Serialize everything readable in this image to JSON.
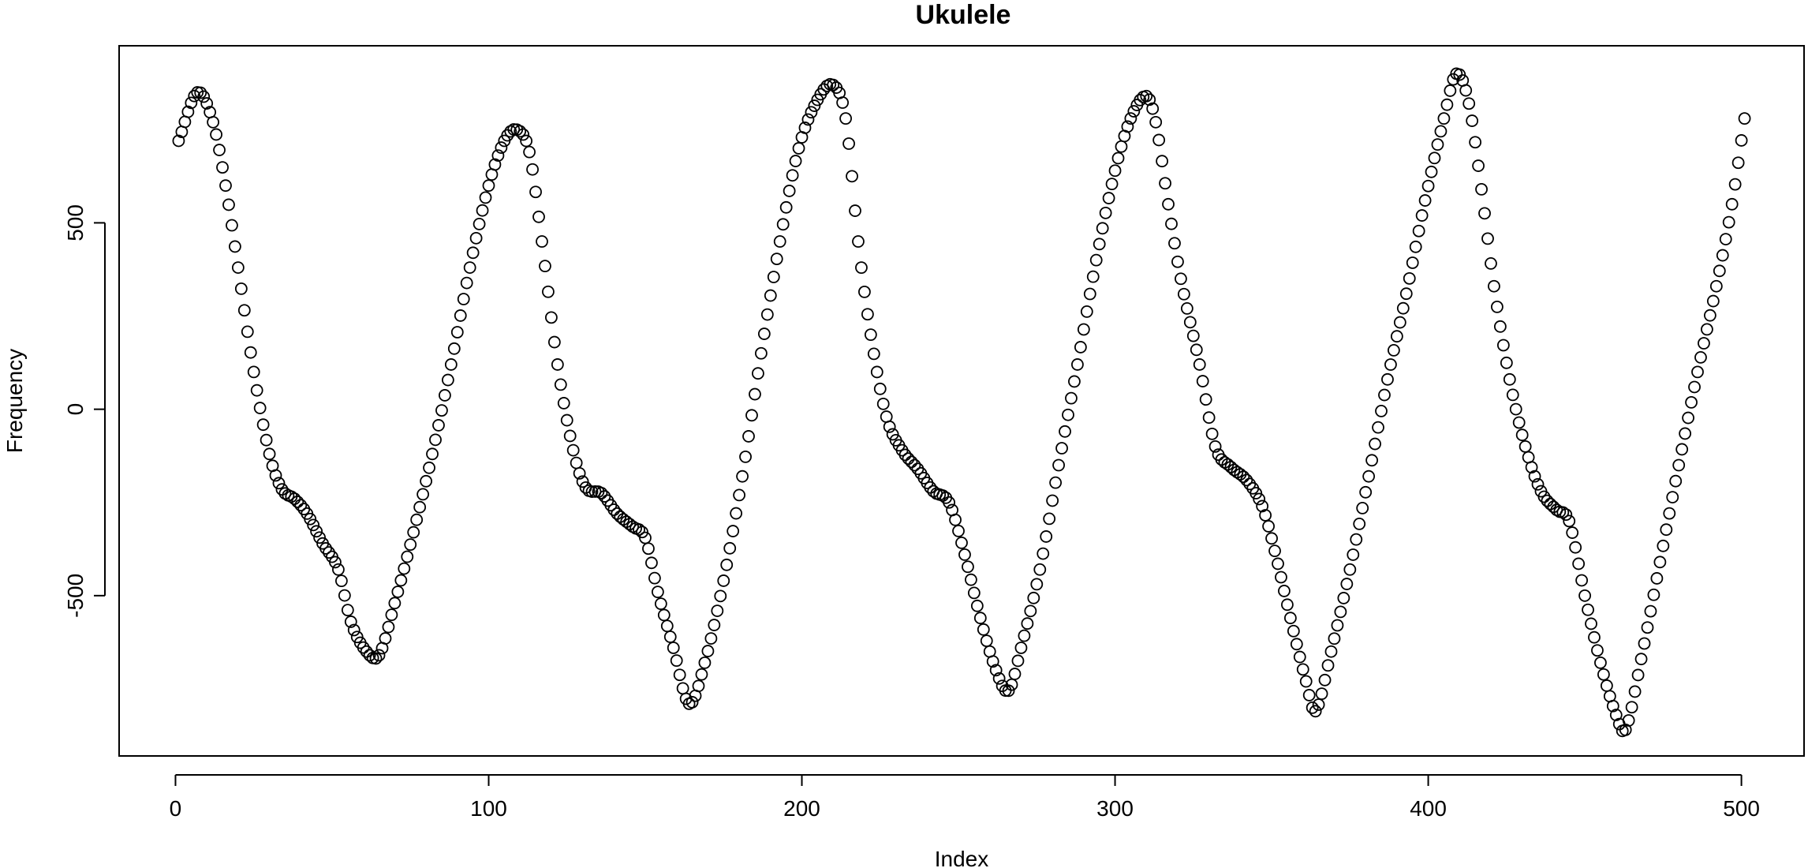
{
  "chart_data": {
    "type": "scatter",
    "title": "Ukulele",
    "xlabel": "Index",
    "ylabel": "Frequency",
    "xlim": [
      -18,
      520
    ],
    "ylim": [
      -930,
      975
    ],
    "x_ticks": [
      0,
      100,
      200,
      300,
      400,
      500
    ],
    "x_tick_labels": [
      "0",
      "100",
      "200",
      "300",
      "400",
      "500"
    ],
    "y_ticks": [
      -500,
      0,
      500
    ],
    "y_tick_labels": [
      "-500",
      "0",
      "500"
    ],
    "grid": false,
    "legend": "none",
    "marker": "open-circle",
    "color": "#000000",
    "anchors": [
      [
        1,
        720
      ],
      [
        7,
        850
      ],
      [
        12,
        770
      ],
      [
        16,
        600
      ],
      [
        20,
        380
      ],
      [
        25,
        100
      ],
      [
        30,
        -120
      ],
      [
        34,
        -215
      ],
      [
        38,
        -240
      ],
      [
        42,
        -280
      ],
      [
        47,
        -360
      ],
      [
        52,
        -430
      ],
      [
        56,
        -570
      ],
      [
        61,
        -650
      ],
      [
        65,
        -660
      ],
      [
        70,
        -520
      ],
      [
        76,
        -330
      ],
      [
        82,
        -120
      ],
      [
        88,
        120
      ],
      [
        94,
        380
      ],
      [
        100,
        600
      ],
      [
        105,
        720
      ],
      [
        109,
        750
      ],
      [
        113,
        690
      ],
      [
        117,
        450
      ],
      [
        122,
        120
      ],
      [
        127,
        -110
      ],
      [
        131,
        -210
      ],
      [
        136,
        -225
      ],
      [
        141,
        -280
      ],
      [
        146,
        -315
      ],
      [
        150,
        -345
      ],
      [
        154,
        -490
      ],
      [
        159,
        -640
      ],
      [
        164,
        -790
      ],
      [
        169,
        -680
      ],
      [
        175,
        -460
      ],
      [
        181,
        -180
      ],
      [
        187,
        150
      ],
      [
        193,
        450
      ],
      [
        199,
        700
      ],
      [
        205,
        830
      ],
      [
        210,
        870
      ],
      [
        214,
        780
      ],
      [
        218,
        450
      ],
      [
        222,
        200
      ],
      [
        227,
        -20
      ],
      [
        232,
        -110
      ],
      [
        237,
        -160
      ],
      [
        242,
        -220
      ],
      [
        247,
        -250
      ],
      [
        252,
        -390
      ],
      [
        257,
        -560
      ],
      [
        262,
        -700
      ],
      [
        266,
        -755
      ],
      [
        270,
        -640
      ],
      [
        276,
        -430
      ],
      [
        282,
        -150
      ],
      [
        288,
        120
      ],
      [
        294,
        400
      ],
      [
        300,
        640
      ],
      [
        305,
        780
      ],
      [
        310,
        840
      ],
      [
        313,
        770
      ],
      [
        317,
        550
      ],
      [
        321,
        350
      ],
      [
        327,
        120
      ],
      [
        332,
        -100
      ],
      [
        337,
        -155
      ],
      [
        342,
        -190
      ],
      [
        347,
        -260
      ],
      [
        351,
        -380
      ],
      [
        356,
        -560
      ],
      [
        361,
        -730
      ],
      [
        364,
        -810
      ],
      [
        369,
        -650
      ],
      [
        375,
        -430
      ],
      [
        381,
        -180
      ],
      [
        387,
        80
      ],
      [
        393,
        310
      ],
      [
        399,
        560
      ],
      [
        405,
        780
      ],
      [
        409,
        900
      ],
      [
        413,
        820
      ],
      [
        417,
        590
      ],
      [
        421,
        330
      ],
      [
        426,
        80
      ],
      [
        431,
        -100
      ],
      [
        436,
        -220
      ],
      [
        441,
        -270
      ],
      [
        445,
        -300
      ],
      [
        450,
        -500
      ],
      [
        455,
        -680
      ],
      [
        460,
        -820
      ],
      [
        463,
        -860
      ],
      [
        468,
        -670
      ],
      [
        474,
        -410
      ],
      [
        480,
        -150
      ],
      [
        486,
        100
      ],
      [
        492,
        330
      ],
      [
        497,
        550
      ],
      [
        501,
        780
      ]
    ]
  }
}
